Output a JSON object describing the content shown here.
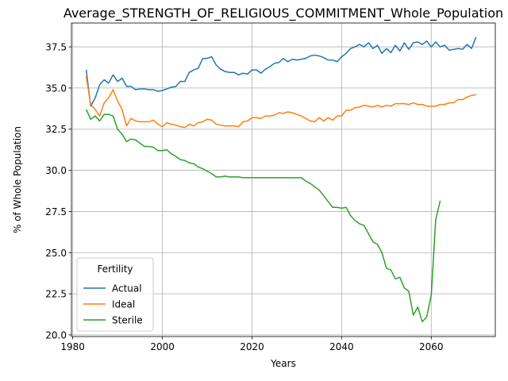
{
  "chart_data": {
    "type": "line",
    "title": "Average_STRENGTH_OF_RELIGIOUS_COMMITMENT_Whole_Population",
    "xlabel": "Years",
    "ylabel": "% of Whole Population",
    "xlim": [
      1979.7,
      2074.3
    ],
    "ylim": [
      19.9,
      38.95
    ],
    "xticks": [
      1980,
      2000,
      2020,
      2040,
      2060
    ],
    "yticks": [
      20.0,
      22.5,
      25.0,
      27.5,
      30.0,
      32.5,
      35.0,
      37.5
    ],
    "ytick_labels": [
      "20.0",
      "22.5",
      "25.0",
      "27.5",
      "30.0",
      "32.5",
      "35.0",
      "37.5"
    ],
    "grid": true,
    "legend": {
      "title": "Fertility",
      "position": "lower-left"
    },
    "series": [
      {
        "name": "Actual",
        "color": "#1f77b4",
        "x": [
          1983,
          1984,
          1985,
          1986,
          1987,
          1988,
          1989,
          1990,
          1991,
          1992,
          1993,
          1994,
          1995,
          1996,
          1997,
          1998,
          1999,
          2000,
          2001,
          2002,
          2003,
          2004,
          2005,
          2006,
          2007,
          2008,
          2009,
          2010,
          2011,
          2012,
          2013,
          2014,
          2015,
          2016,
          2017,
          2018,
          2019,
          2020,
          2021,
          2022,
          2023,
          2024,
          2025,
          2026,
          2027,
          2028,
          2029,
          2030,
          2031,
          2032,
          2033,
          2034,
          2035,
          2036,
          2037,
          2038,
          2039,
          2040,
          2041,
          2042,
          2043,
          2044,
          2045,
          2046,
          2047,
          2048,
          2049,
          2050,
          2051,
          2052,
          2053,
          2054,
          2055,
          2056,
          2057,
          2058,
          2059,
          2060,
          2061,
          2062,
          2063,
          2064,
          2065,
          2066,
          2067,
          2068,
          2069,
          2070
        ],
        "values": [
          36.1,
          33.9,
          34.4,
          35.2,
          35.5,
          35.3,
          35.8,
          35.4,
          35.6,
          35.1,
          35.1,
          34.9,
          34.95,
          34.95,
          34.9,
          34.9,
          34.8,
          34.85,
          34.95,
          35.05,
          35.1,
          35.4,
          35.4,
          35.95,
          36.1,
          36.2,
          36.8,
          36.8,
          36.9,
          36.4,
          36.15,
          36.0,
          35.95,
          35.95,
          35.8,
          35.9,
          35.85,
          36.1,
          36.1,
          35.9,
          36.15,
          36.3,
          36.5,
          36.55,
          36.8,
          36.6,
          36.75,
          36.7,
          36.75,
          36.8,
          36.95,
          37.0,
          36.95,
          36.85,
          36.7,
          36.7,
          36.6,
          36.9,
          37.1,
          37.4,
          37.5,
          37.65,
          37.5,
          37.75,
          37.4,
          37.6,
          37.1,
          37.4,
          37.15,
          37.6,
          37.25,
          37.75,
          37.35,
          37.75,
          37.8,
          37.65,
          37.85,
          37.5,
          37.8,
          37.5,
          37.6,
          37.3,
          37.35,
          37.4,
          37.35,
          37.65,
          37.4,
          38.1
        ]
      },
      {
        "name": "Ideal",
        "color": "#ff7f0e",
        "x": [
          1983,
          1984,
          1985,
          1986,
          1987,
          1988,
          1989,
          1990,
          1991,
          1992,
          1993,
          1994,
          1995,
          1996,
          1997,
          1998,
          1999,
          2000,
          2001,
          2002,
          2003,
          2004,
          2005,
          2006,
          2007,
          2008,
          2009,
          2010,
          2011,
          2012,
          2013,
          2014,
          2015,
          2016,
          2017,
          2018,
          2019,
          2020,
          2021,
          2022,
          2023,
          2024,
          2025,
          2026,
          2027,
          2028,
          2029,
          2030,
          2031,
          2032,
          2033,
          2034,
          2035,
          2036,
          2037,
          2038,
          2039,
          2040,
          2041,
          2042,
          2043,
          2044,
          2045,
          2046,
          2047,
          2048,
          2049,
          2050,
          2051,
          2052,
          2053,
          2054,
          2055,
          2056,
          2057,
          2058,
          2059,
          2060,
          2061,
          2062,
          2063,
          2064,
          2065,
          2066,
          2067,
          2068,
          2069,
          2070
        ],
        "values": [
          35.7,
          34.0,
          33.7,
          33.3,
          34.1,
          34.4,
          34.9,
          34.2,
          33.7,
          32.7,
          33.15,
          33.0,
          32.95,
          32.95,
          32.95,
          33.05,
          32.8,
          32.65,
          32.9,
          32.8,
          32.75,
          32.65,
          32.6,
          32.8,
          32.7,
          32.9,
          32.95,
          33.1,
          33.05,
          32.8,
          32.75,
          32.7,
          32.7,
          32.7,
          32.65,
          32.95,
          33.0,
          33.2,
          33.2,
          33.15,
          33.3,
          33.3,
          33.35,
          33.5,
          33.45,
          33.55,
          33.5,
          33.4,
          33.3,
          33.15,
          33.0,
          32.95,
          33.2,
          33.0,
          33.2,
          33.05,
          33.3,
          33.3,
          33.65,
          33.65,
          33.8,
          33.85,
          33.95,
          33.9,
          33.85,
          33.95,
          33.85,
          33.95,
          33.9,
          34.05,
          34.05,
          34.05,
          34.0,
          34.1,
          34.0,
          34.0,
          33.9,
          33.9,
          33.9,
          34.0,
          34.0,
          34.1,
          34.1,
          34.3,
          34.3,
          34.45,
          34.55,
          34.6
        ]
      },
      {
        "name": "Sterile",
        "color": "#2ca02c",
        "x": [
          1983,
          1984,
          1985,
          1986,
          1987,
          1988,
          1989,
          1990,
          1991,
          1992,
          1993,
          1994,
          1995,
          1996,
          1997,
          1998,
          1999,
          2000,
          2001,
          2002,
          2003,
          2004,
          2005,
          2006,
          2007,
          2008,
          2009,
          2010,
          2011,
          2012,
          2013,
          2014,
          2015,
          2016,
          2017,
          2018,
          2019,
          2020,
          2021,
          2022,
          2023,
          2024,
          2025,
          2026,
          2027,
          2028,
          2029,
          2030,
          2031,
          2032,
          2033,
          2034,
          2035,
          2036,
          2037,
          2038,
          2039,
          2040,
          2041,
          2042,
          2043,
          2044,
          2045,
          2046,
          2047,
          2048,
          2049,
          2050,
          2051,
          2052,
          2053,
          2054,
          2055,
          2056,
          2057,
          2058,
          2059,
          2060,
          2061,
          2062
        ],
        "values": [
          33.7,
          33.1,
          33.3,
          33.0,
          33.4,
          33.4,
          33.3,
          32.5,
          32.2,
          31.75,
          31.9,
          31.85,
          31.65,
          31.45,
          31.45,
          31.4,
          31.2,
          31.2,
          31.25,
          31.0,
          30.85,
          30.65,
          30.6,
          30.45,
          30.4,
          30.2,
          30.1,
          29.95,
          29.8,
          29.6,
          29.6,
          29.65,
          29.6,
          29.6,
          29.6,
          29.55,
          29.55,
          29.55,
          29.55,
          29.55,
          29.55,
          29.55,
          29.55,
          29.55,
          29.55,
          29.55,
          29.55,
          29.55,
          29.55,
          29.35,
          29.2,
          29.0,
          28.8,
          28.45,
          28.1,
          27.75,
          27.75,
          27.7,
          27.75,
          27.25,
          26.95,
          26.75,
          26.65,
          26.15,
          25.65,
          25.5,
          25.0,
          24.05,
          23.95,
          23.4,
          23.5,
          22.85,
          22.65,
          21.2,
          21.7,
          20.8,
          21.1,
          22.4,
          27.0,
          28.15
        ]
      }
    ]
  }
}
